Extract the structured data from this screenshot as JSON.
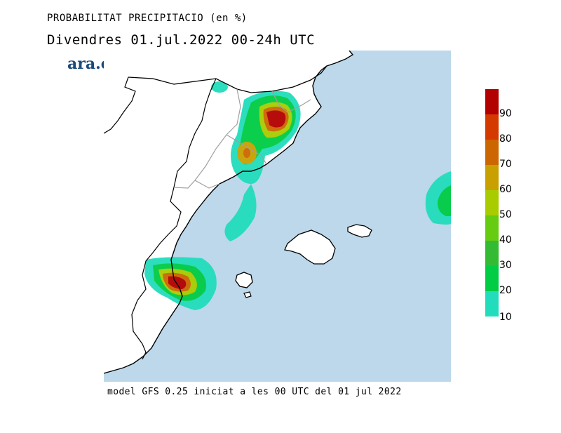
{
  "header": {
    "title": "PROBABILITAT PRECIPITACIO (en %)",
    "subtitle": "Divendres  01.jul.2022 00-24h UTC"
  },
  "brand": {
    "logo_text": "ara.cat"
  },
  "legend": {
    "colors": [
      "#b30000",
      "#d43a00",
      "#cc6600",
      "#c8a000",
      "#a8cc00",
      "#66cc11",
      "#33bb33",
      "#00cc44",
      "#00dd88",
      "#22ddbb"
    ],
    "labels": [
      "90",
      "80",
      "70",
      "60",
      "50",
      "40",
      "30",
      "20",
      "10"
    ]
  },
  "footer": {
    "text": "model GFS 0.25 iniciat a les 00 UTC del 01 jul 2022"
  },
  "map": {
    "sea_color": "#bcd8ea",
    "land_color": "#ffffff",
    "border_color": "#000000",
    "province_border_color": "#a0a0a0"
  }
}
